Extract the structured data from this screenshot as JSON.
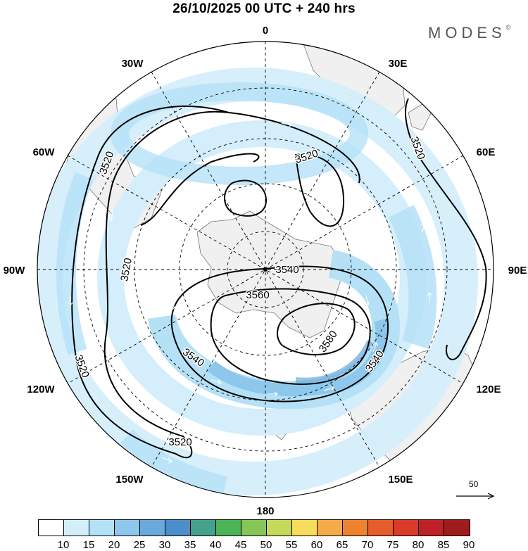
{
  "title": "26/10/2025  00 UTC  + 240 hrs",
  "brand": "MODES",
  "brand_mark": "©",
  "map": {
    "projection": "south-polar-stereographic",
    "longitude_labels": {
      "top": "0",
      "top_right": "30E",
      "right_upper": "60E",
      "right": "90E",
      "right_lower": "120E",
      "bottom_right": "150E",
      "bottom": "180",
      "bottom_left": "150W",
      "left_lower": "120W",
      "left": "90W",
      "left_upper": "60W",
      "top_left": "30W"
    },
    "contour_labels": [
      "3520",
      "3520",
      "3520",
      "3520",
      "3520",
      "3520",
      "3540",
      "3540",
      "3540",
      "3560",
      "3580"
    ],
    "reference_vector": "50"
  },
  "colorbar": {
    "labels": [
      "10",
      "15",
      "20",
      "25",
      "30",
      "35",
      "40",
      "45",
      "50",
      "55",
      "60",
      "65",
      "70",
      "75",
      "80",
      "85",
      "90"
    ],
    "colors": [
      "#ffffff",
      "#d4eefb",
      "#b5e1f7",
      "#8ec7ec",
      "#6aa9dc",
      "#4b8ec9",
      "#45a08c",
      "#4cb356",
      "#86c658",
      "#c7d95a",
      "#f7dd5c",
      "#f5ab47",
      "#ef8230",
      "#e65d2b",
      "#d93a29",
      "#be2228",
      "#9e1b1e"
    ]
  }
}
